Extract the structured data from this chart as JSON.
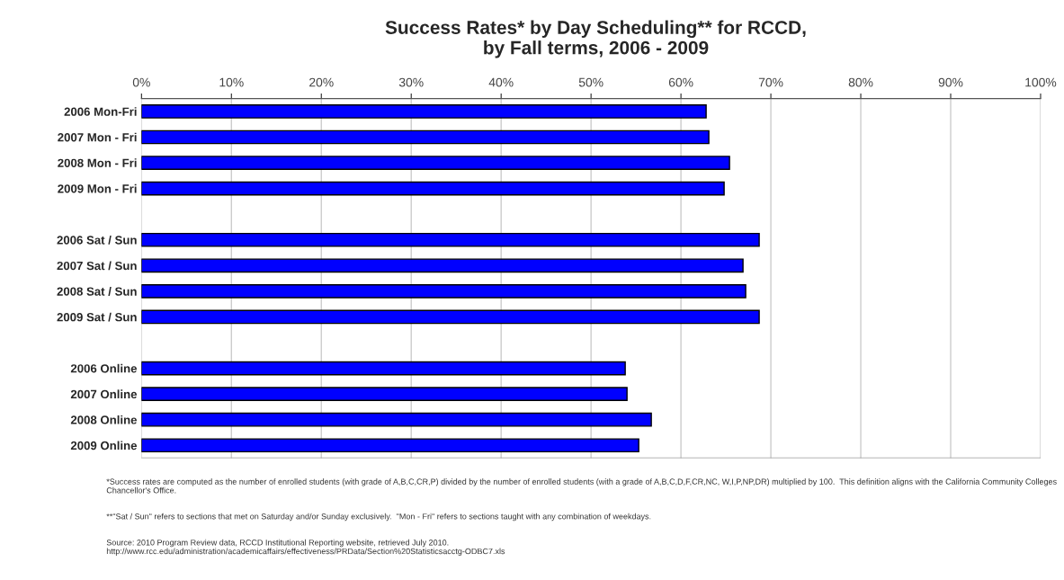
{
  "chart_data": {
    "type": "bar",
    "orientation": "horizontal",
    "title": "Success Rates* by Day Scheduling** for RCCD,\nby Fall terms, 2006 - 2009",
    "categories": [
      "2006 Mon-Fri",
      "2007 Mon - Fri",
      "2008 Mon - Fri",
      "2009 Mon - Fri",
      null,
      "2006 Sat / Sun",
      "2007 Sat / Sun",
      "2008 Sat / Sun",
      "2009 Sat / Sun",
      null,
      "2006 Online",
      "2007 Online",
      "2008 Online",
      "2009 Online"
    ],
    "values": [
      62.8,
      63.1,
      65.4,
      64.8,
      null,
      68.7,
      66.9,
      67.2,
      68.7,
      null,
      53.8,
      54.0,
      56.7,
      55.3
    ],
    "color": "#0000ff",
    "xlim": [
      0,
      100
    ],
    "xticks": [
      {
        "value": 0,
        "label": "0%"
      },
      {
        "value": 10,
        "label": "10%"
      },
      {
        "value": 20,
        "label": "20%"
      },
      {
        "value": 30,
        "label": "30%"
      },
      {
        "value": 40,
        "label": "40%"
      },
      {
        "value": 50,
        "label": "50%"
      },
      {
        "value": 60,
        "label": "60%"
      },
      {
        "value": 70,
        "label": "70%"
      },
      {
        "value": 80,
        "label": "80%"
      },
      {
        "value": 90,
        "label": "90%"
      },
      {
        "value": 100,
        "label": "100%"
      }
    ],
    "grid": "x",
    "annotations": [
      "*Success rates are computed as the number of enrolled students (with grade of A,B,C,CR,P) divided by the number of enrolled students (with a grade of A,B,C,D,F,CR,NC, W,I,P,NP,DR) multiplied by 100.  This definition aligns with the California Community Colleges Chancellor's Office.",
      "**\"Sat / Sun\" refers to sections that met on Saturday and/or Sunday exclusively.  \"Mon - Fri\" refers to sections taught with any combination of weekdays.",
      "Source: 2010 Program Review data, RCCD Institutional Reporting website, retrieved July 2010.\nhttp://www.rcc.edu/administration/academicaffairs/effectiveness/PRData/Section%20Statisticsacctg-ODBC7.xls"
    ]
  }
}
